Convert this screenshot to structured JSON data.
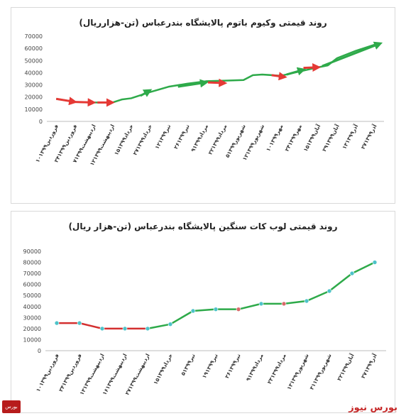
{
  "chart_data": [
    {
      "type": "line",
      "title": "روند قیمتی وکیوم باتوم پالایشگاه بندرعباس (تن-هزارریال)",
      "categories": [
        "۱۰فروردین۱۳۹۹",
        "۲۴فروردین۱۳۹۹",
        "۷اردیبهشت۱۳۹۹",
        "۱۲اردیبهشت۱۳۹۹",
        "۱۵خرداد۱۳۹۹",
        "۲۷خرداد۱۳۹۹",
        "۱۲تیر۱۳۹۹",
        "۲۶تیر۱۳۹۹",
        "۹مرداد۱۳۹۹",
        "۲۲مرداد۱۳۹۹",
        "۵شهریور۱۳۹۹",
        "۱۲شهریور۱۳۹۹",
        "۱۰مهر۱۳۹۹",
        "۲۴مهر۱۳۹۹",
        "۱۵آبان۱۳۹۹",
        "۲۹آبان۱۳۹۹",
        "۱۳آذر۱۳۹۹",
        "۲۷آذر۱۳۹۹"
      ],
      "points": [
        {
          "x": 0,
          "y": 18500
        },
        {
          "x": 1,
          "y": 16000
        },
        {
          "x": 2,
          "y": 15500
        },
        {
          "x": 3,
          "y": 15500
        },
        {
          "x": 3.5,
          "y": 18000
        },
        {
          "x": 4,
          "y": 19000
        },
        {
          "x": 5,
          "y": 24000
        },
        {
          "x": 6,
          "y": 28500
        },
        {
          "x": 7,
          "y": 31000
        },
        {
          "x": 8,
          "y": 33000
        },
        {
          "x": 9,
          "y": 33500
        },
        {
          "x": 10,
          "y": 34000
        },
        {
          "x": 10.5,
          "y": 38000
        },
        {
          "x": 11,
          "y": 38500
        },
        {
          "x": 12,
          "y": 37500
        },
        {
          "x": 13,
          "y": 41000
        },
        {
          "x": 14,
          "y": 44500
        },
        {
          "x": 14.5,
          "y": 46000
        },
        {
          "x": 15,
          "y": 52000
        },
        {
          "x": 16,
          "y": 58000
        },
        {
          "x": 17,
          "y": 63000
        }
      ],
      "line_color": "#2eaa4a",
      "arrows": [
        {
          "from": [
            0,
            18500
          ],
          "to": [
            1,
            16000
          ],
          "color": "#e53935"
        },
        {
          "from": [
            1,
            16000
          ],
          "to": [
            2,
            15500
          ],
          "color": "#e53935"
        },
        {
          "from": [
            2.2,
            15500
          ],
          "to": [
            3,
            15500
          ],
          "color": "#e53935"
        },
        {
          "from": [
            4.5,
            21000
          ],
          "to": [
            5,
            25500
          ],
          "color": "#2eaa4a"
        },
        {
          "from": [
            6.5,
            28500
          ],
          "to": [
            8,
            32000
          ],
          "color": "#2eaa4a"
        },
        {
          "from": [
            8.1,
            32000
          ],
          "to": [
            9,
            31500
          ],
          "color": "#e53935"
        },
        {
          "from": [
            11.5,
            38000
          ],
          "to": [
            12.2,
            36500
          ],
          "color": "#e53935"
        },
        {
          "from": [
            12.3,
            38500
          ],
          "to": [
            13.2,
            42500
          ],
          "color": "#2eaa4a"
        },
        {
          "from": [
            13.2,
            44000
          ],
          "to": [
            14,
            44500
          ],
          "color": "#e53935"
        },
        {
          "from": [
            14.2,
            45500
          ],
          "to": [
            17.3,
            64000
          ],
          "color": "#2eaa4a"
        }
      ],
      "y_ticks": [
        70000,
        60000,
        50000,
        40000,
        30000,
        20000,
        10000,
        0
      ],
      "ylim": [
        0,
        70000
      ],
      "grid": false
    },
    {
      "type": "line",
      "title": "روند قیمتی لوب کات سنگین پالایشگاه بندرعباس (تن-هزار ریال)",
      "categories": [
        "۱۰فروردین۱۳۹۹",
        "۲۴فروردین۱۳۹۹",
        "۱۳اردیبهشت۱۳۹۹",
        "۱۶اردیبهشت۱۳۹۹",
        "۲۷اردیبهشت۱۳۹۹",
        "۱۵خرداد۱۳۹۹",
        "۵تیر۱۳۹۹",
        "۱۹تیر۱۳۹۹",
        "۲۶تیر۱۳۹۹",
        "۹مرداد۱۳۹۹",
        "۲۳مرداد۱۳۹۹",
        "۱۳شهریور۱۳۹۹",
        "۳۱شهریور۱۳۹۹",
        "۲۲آبان۱۳۹۹",
        "۲۷آذر۱۳۹۹"
      ],
      "series": [
        {
          "values": [
            25000,
            25000,
            20000,
            20000,
            20000,
            24000,
            36000,
            37500,
            37500,
            42500,
            42500,
            45000,
            54000,
            70000,
            80000
          ]
        }
      ],
      "marker_color": "#4dc3c9",
      "segment_colors": [
        "#d32f2f",
        "#d32f2f",
        "#d32f2f",
        "#d32f2f",
        "#2eaa4a",
        "#2eaa4a",
        "#2eaa4a",
        "#2eaa4a",
        "#2eaa4a",
        "#2eaa4a",
        "#2eaa4a",
        "#2eaa4a",
        "#2eaa4a",
        "#2eaa4a"
      ],
      "point_colors": [
        "#4dc3c9",
        "#4dc3c9",
        "#4dc3c9",
        "#4dc3c9",
        "#4dc3c9",
        "#4dc3c9",
        "#4dc3c9",
        "#4dc3c9",
        "#d86a6a",
        "#4dc3c9",
        "#d86a6a",
        "#4dc3c9",
        "#4dc3c9",
        "#4dc3c9",
        "#4dc3c9"
      ],
      "y_ticks": [
        90000,
        80000,
        70000,
        60000,
        50000,
        40000,
        30000,
        20000,
        10000,
        0
      ],
      "ylim": [
        0,
        90000
      ],
      "grid": false
    }
  ],
  "brand": {
    "name": "بورس نیوز",
    "logo_text": "بورس",
    "color": "#c62828"
  }
}
